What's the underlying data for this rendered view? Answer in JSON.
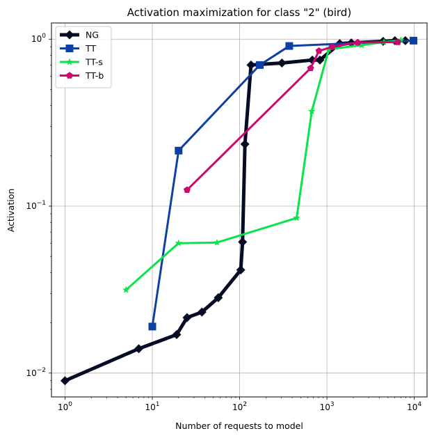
{
  "chart_data": {
    "type": "line",
    "title": "Activation maximization for class \"2\" (bird)",
    "xlabel": "Number of requests to model",
    "ylabel": "Activation",
    "xscale": "log",
    "yscale": "log",
    "xlim": [
      0.7,
      14000
    ],
    "ylim": [
      0.0072,
      1.25
    ],
    "grid": true,
    "legend_position": "top-left",
    "x_ticks": [
      {
        "value": 1,
        "base": "10",
        "exp": "0"
      },
      {
        "value": 10,
        "base": "10",
        "exp": "1"
      },
      {
        "value": 100,
        "base": "10",
        "exp": "2"
      },
      {
        "value": 1000,
        "base": "10",
        "exp": "3"
      },
      {
        "value": 10000,
        "base": "10",
        "exp": "4"
      }
    ],
    "y_ticks": [
      {
        "value": 0.01,
        "base": "10",
        "exp": "−2"
      },
      {
        "value": 0.1,
        "base": "10",
        "exp": "−1"
      },
      {
        "value": 1,
        "base": "10",
        "exp": "0"
      }
    ],
    "series": [
      {
        "name": "NG",
        "color": "#050c24",
        "marker": "diamond",
        "line_width": 5,
        "x": [
          1,
          7,
          19,
          25,
          37,
          57,
          103,
          108,
          115,
          135,
          305,
          680,
          830,
          1400,
          1900,
          4400,
          6000,
          7900
        ],
        "y": [
          0.009,
          0.014,
          0.017,
          0.0215,
          0.0232,
          0.0283,
          0.0415,
          0.061,
          0.235,
          0.7,
          0.72,
          0.75,
          0.75,
          0.94,
          0.95,
          0.97,
          0.98,
          0.98
        ]
      },
      {
        "name": "TT",
        "color": "#0e3fa2",
        "marker": "square",
        "line_width": 3,
        "x": [
          10,
          20,
          170,
          370,
          9800
        ],
        "y": [
          0.019,
          0.215,
          0.7,
          0.91,
          0.98
        ]
      },
      {
        "name": "TT-s",
        "color": "#08e44a",
        "marker": "star",
        "line_width": 3,
        "x": [
          5,
          20,
          55,
          450,
          670,
          1050,
          2500,
          4500,
          7000
        ],
        "y": [
          0.0315,
          0.06,
          0.0605,
          0.085,
          0.37,
          0.87,
          0.92,
          0.96,
          0.985
        ]
      },
      {
        "name": "TT-b",
        "color": "#cc0771",
        "marker": "pentagon",
        "line_width": 3,
        "x": [
          25,
          650,
          810,
          1150,
          2250,
          6500
        ],
        "y": [
          0.125,
          0.67,
          0.85,
          0.9,
          0.955,
          0.96
        ]
      }
    ]
  }
}
